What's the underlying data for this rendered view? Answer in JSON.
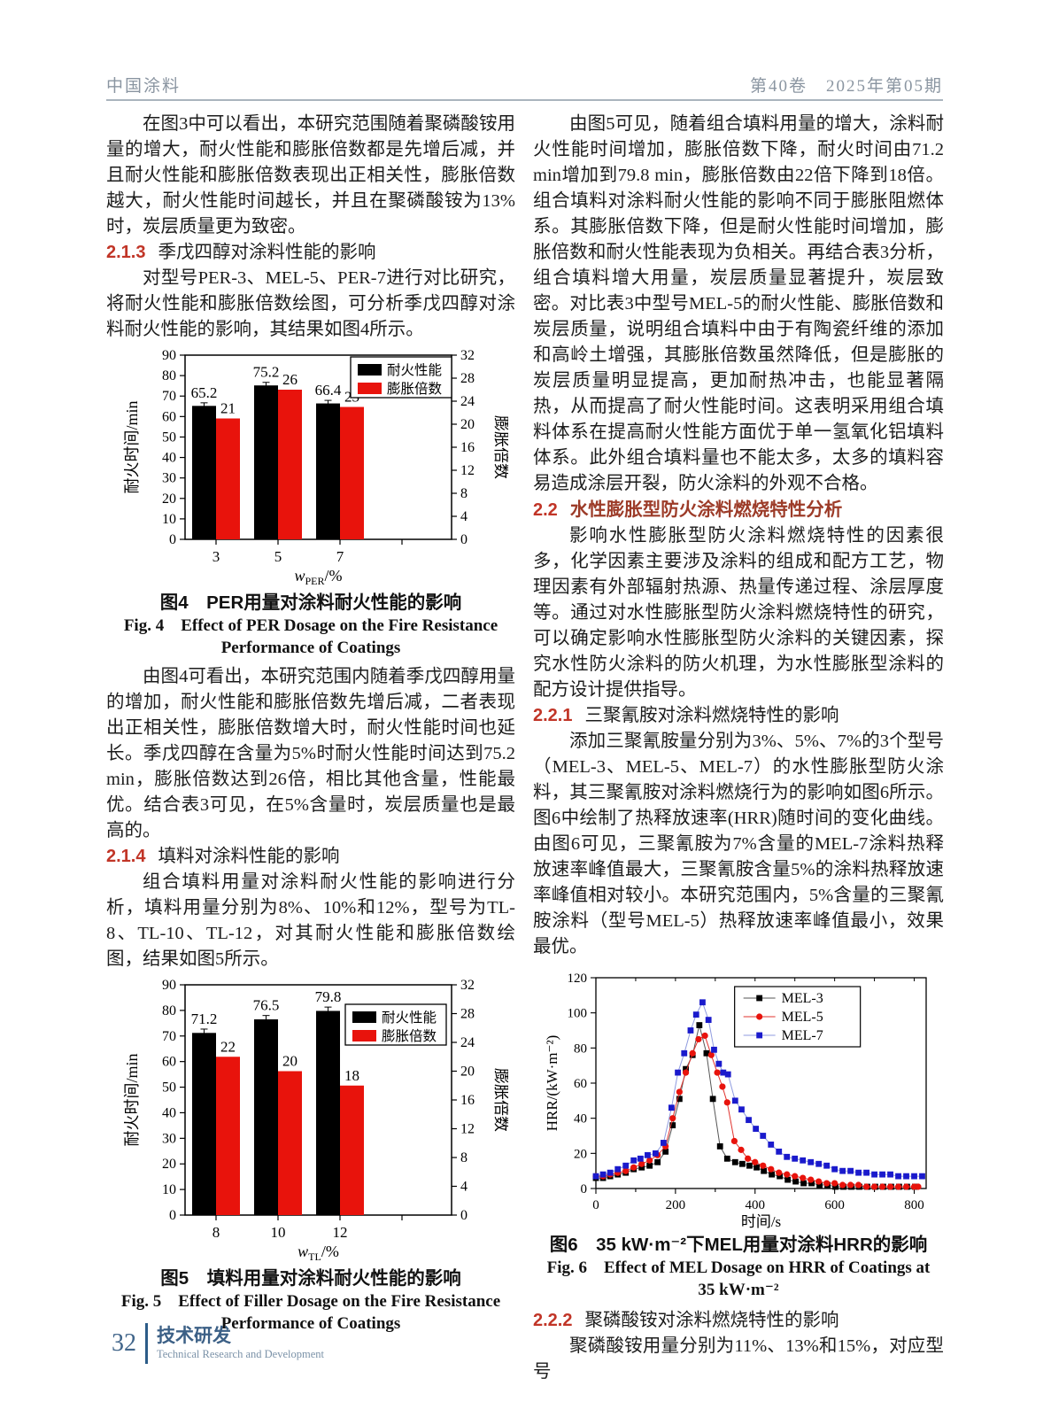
{
  "header": {
    "journal": "中国涂料",
    "issue": "第40卷　2025年第05期"
  },
  "footer": {
    "page": "32",
    "section_cn": "技术研发",
    "section_en": "Technical Research and Development"
  },
  "left": {
    "para1": "在图3中可以看出，本研究范围随着聚磷酸铵用量的增大，耐火性能和膨胀倍数都是先增后减，并且耐火性能和膨胀倍数表现出正相关性，膨胀倍数越大，耐火性能时间越长，并且在聚磷酸铵为13%时，炭层质量更为致密。",
    "s213": {
      "num": "2.1.3",
      "title": "季戊四醇对涂料性能的影响"
    },
    "para2": "对型号PER-3、MEL-5、PER-7进行对比研究，将耐火性能和膨胀倍数绘图，可分析季戊四醇对涂料耐火性能的影响，其结果如图4所示。",
    "fig4": {
      "cap_cn": "图4　PER用量对涂料耐火性能的影响",
      "cap_en1": "Fig. 4　Effect of PER Dosage on the Fire Resistance",
      "cap_en2": "Performance of Coatings"
    },
    "para3": "由图4可看出，本研究范围内随着季戊四醇用量的增加，耐火性能和膨胀倍数先增后减，二者表现出正相关性，膨胀倍数增大时，耐火性能时间也延长。季戊四醇在含量为5%时耐火性能时间达到75.2 min，膨胀倍数达到26倍，相比其他含量，性能最优。结合表3可见，在5%含量时，炭层质量也是最高的。",
    "s214": {
      "num": "2.1.4",
      "title": "填料对涂料性能的影响"
    },
    "para4": "组合填料用量对涂料耐火性能的影响进行分析，填料用量分别为8%、10%和12%，型号为TL-8、TL-10、TL-12，对其耐火性能和膨胀倍数绘图，结果如图5所示。",
    "fig5": {
      "cap_cn": "图5　填料用量对涂料耐火性能的影响",
      "cap_en1": "Fig. 5　Effect of Filler Dosage on the Fire Resistance",
      "cap_en2": "Performance of Coatings"
    }
  },
  "right": {
    "para1": "由图5可见，随着组合填料用量的增大，涂料耐火性能时间增加，膨胀倍数下降，耐火时间由71.2 min增加到79.8 min，膨胀倍数由22倍下降到18倍。组合填料对涂料耐火性能的影响不同于膨胀阻燃体系。其膨胀倍数下降，但是耐火性能时间增加，膨胀倍数和耐火性能表现为负相关。再结合表3分析，组合填料增大用量，炭层质量显著提升，炭层致密。对比表3中型号MEL-5的耐火性能、膨胀倍数和炭层质量，说明组合填料中由于有陶瓷纤维的添加和高岭土增强，其膨胀倍数虽然降低，但是膨胀的炭层质量明显提高，更加耐热冲击，也能显著隔热，从而提高了耐火性能时间。这表明采用组合填料体系在提高耐火性能方面优于单一氢氧化铝填料体系。此外组合填料量也不能太多，太多的填料容易造成涂层开裂，防火涂料的外观不合格。",
    "s22": {
      "num": "2.2",
      "title": "水性膨胀型防火涂料燃烧特性分析"
    },
    "para2": "影响水性膨胀型防火涂料燃烧特性的因素很多，化学因素主要涉及涂料的组成和配方工艺，物理因素有外部辐射热源、热量传递过程、涂层厚度等。通过对水性膨胀型防火涂料燃烧特性的研究，可以确定影响水性膨胀型防火涂料的关键因素，探究水性防火涂料的防火机理，为水性膨胀型涂料的配方设计提供指导。",
    "s221": {
      "num": "2.2.1",
      "title": "三聚氰胺对涂料燃烧特性的影响"
    },
    "para3": "添加三聚氰胺量分别为3%、5%、7%的3个型号（MEL-3、MEL-5、MEL-7）的水性膨胀型防火涂料，其三聚氰胺对涂料燃烧行为的影响如图6所示。图6中绘制了热释放速率(HRR)随时间的变化曲线。由图6可见，三聚氰胺为7%含量的MEL-7涂料热释放速率峰值最大，三聚氰胺含量5%的涂料热释放速率峰值相对较小。本研究范围内，5%含量的三聚氰胺涂料（型号MEL-5）热释放速率峰值最小，效果最优。",
    "fig6": {
      "cap_cn": "图6　35 kW·m⁻²下MEL用量对涂料HRR的影响",
      "cap_en1": "Fig. 6　Effect of MEL Dosage on HRR of Coatings at",
      "cap_en2": "35 kW·m⁻²"
    },
    "s222": {
      "num": "2.2.2",
      "title": "聚磷酸铵对涂料燃烧特性的影响"
    },
    "para4": "聚磷酸铵用量分别为11%、13%和15%，对应型号"
  },
  "colors": {
    "bar_black": "#000000",
    "bar_red": "#e8130c",
    "accent_red": "#c13527",
    "heading_red": "#9c3b28",
    "mel3": "#000000",
    "mel5": "#e8130c",
    "mel7": "#1a1acc"
  },
  "chart_data": [
    {
      "type": "bar",
      "title_cn": "图4 PER用量对涂料耐火性能的影响",
      "title_en": "Fig. 4 Effect of PER Dosage on the Fire Resistance Performance of Coatings",
      "categories": [
        "3",
        "5",
        "7"
      ],
      "series": [
        {
          "name": "耐火性能",
          "axis": "left",
          "color": "#000000",
          "values": [
            65.2,
            75.2,
            66.4
          ],
          "error": 1.5
        },
        {
          "name": "膨胀倍数",
          "axis": "right",
          "color": "#e8130c",
          "values": [
            21,
            26,
            23
          ]
        }
      ],
      "ylabel_left": "耐火时间/min",
      "ylabel_right": "膨胀倍数",
      "ylim_left": [
        0,
        90
      ],
      "ystep_left": 10,
      "ylim_right": [
        0,
        32
      ],
      "ystep_right": 4,
      "xlabel": {
        "var": "w",
        "sub": "PER",
        "unit": "/%"
      },
      "legend_pos": "top-right",
      "legend_dy": 2,
      "grid": false
    },
    {
      "type": "bar",
      "title_cn": "图5 填料用量对涂料耐火性能的影响",
      "title_en": "Fig. 5 Effect of Filler Dosage on the Fire Resistance Performance of Coatings",
      "categories": [
        "8",
        "10",
        "12"
      ],
      "series": [
        {
          "name": "耐火性能",
          "axis": "left",
          "color": "#000000",
          "values": [
            71.2,
            76.5,
            79.8
          ],
          "error": 1.5
        },
        {
          "name": "膨胀倍数",
          "axis": "right",
          "color": "#e8130c",
          "values": [
            22,
            20,
            18
          ]
        }
      ],
      "ylabel_left": "耐火时间/min",
      "ylabel_right": "膨胀倍数",
      "ylim_left": [
        0,
        90
      ],
      "ystep_left": 10,
      "ylim_right": [
        0,
        32
      ],
      "ystep_right": 4,
      "xlabel": {
        "var": "w",
        "sub": "TL",
        "unit": "/%"
      },
      "legend_pos": "top-right",
      "legend_dy": 22,
      "grid": false
    },
    {
      "type": "line",
      "title_cn": "图6 35 kW·m⁻²下MEL用量对涂料HRR的影响",
      "title_en": "Fig. 6 Effect of MEL Dosage on HRR of Coatings at 35 kW·m⁻²",
      "xlabel": "时间/s",
      "ylabel": "HRR/(kW·m⁻²)",
      "xlim": [
        0,
        830
      ],
      "xticks": [
        0,
        200,
        400,
        600,
        800
      ],
      "xminor": 100,
      "ylim": [
        0,
        120
      ],
      "ystep": 20,
      "grid": false,
      "legend_pos": "top-center-right",
      "series": [
        {
          "name": "MEL-3",
          "marker": "square",
          "color": "#000000",
          "line": "#555555",
          "points": [
            [
              0,
              6
            ],
            [
              18,
              6
            ],
            [
              36,
              7
            ],
            [
              55,
              8
            ],
            [
              75,
              9
            ],
            [
              95,
              11
            ],
            [
              115,
              12
            ],
            [
              135,
              13
            ],
            [
              155,
              15
            ],
            [
              175,
              21
            ],
            [
              193,
              36
            ],
            [
              210,
              51
            ],
            [
              226,
              68
            ],
            [
              243,
              76
            ],
            [
              260,
              93
            ],
            [
              278,
              77
            ],
            [
              294,
              51
            ],
            [
              312,
              24
            ],
            [
              330,
              17
            ],
            [
              350,
              15
            ],
            [
              368,
              14
            ],
            [
              386,
              13
            ],
            [
              404,
              12
            ],
            [
              422,
              10
            ],
            [
              442,
              8
            ],
            [
              462,
              7
            ],
            [
              482,
              5
            ],
            [
              502,
              4
            ],
            [
              522,
              3
            ],
            [
              542,
              3
            ],
            [
              562,
              2
            ],
            [
              582,
              2
            ],
            [
              602,
              1
            ],
            [
              622,
              1
            ],
            [
              642,
              1
            ],
            [
              662,
              1
            ],
            [
              682,
              1
            ],
            [
              702,
              1
            ],
            [
              722,
              1
            ],
            [
              742,
              1
            ],
            [
              762,
              1
            ],
            [
              782,
              1
            ],
            [
              802,
              1
            ]
          ]
        },
        {
          "name": "MEL-5",
          "marker": "circle",
          "color": "#e8130c",
          "line": "#e0332e",
          "points": [
            [
              0,
              7
            ],
            [
              18,
              7
            ],
            [
              36,
              8
            ],
            [
              55,
              9
            ],
            [
              75,
              10
            ],
            [
              95,
              12
            ],
            [
              115,
              14
            ],
            [
              135,
              16
            ],
            [
              155,
              19
            ],
            [
              175,
              24
            ],
            [
              193,
              40
            ],
            [
              210,
              55
            ],
            [
              226,
              66
            ],
            [
              243,
              77
            ],
            [
              258,
              85
            ],
            [
              274,
              87
            ],
            [
              290,
              76
            ],
            [
              305,
              66
            ],
            [
              318,
              58
            ],
            [
              330,
              49
            ],
            [
              348,
              27
            ],
            [
              365,
              22
            ],
            [
              382,
              17
            ],
            [
              400,
              15
            ],
            [
              420,
              13
            ],
            [
              440,
              11
            ],
            [
              460,
              9
            ],
            [
              480,
              8
            ],
            [
              500,
              7
            ],
            [
              520,
              6
            ],
            [
              540,
              5
            ],
            [
              560,
              4
            ],
            [
              580,
              3
            ],
            [
              600,
              3
            ],
            [
              620,
              2
            ],
            [
              640,
              2
            ],
            [
              660,
              2
            ],
            [
              680,
              1
            ],
            [
              700,
              1
            ],
            [
              720,
              1
            ],
            [
              740,
              1
            ],
            [
              760,
              1
            ],
            [
              780,
              1
            ],
            [
              800,
              1
            ],
            [
              810,
              1
            ]
          ]
        },
        {
          "name": "MEL-7",
          "marker": "square",
          "color": "#1a1acc",
          "line": "#8f9bdf",
          "points": [
            [
              0,
              7
            ],
            [
              18,
              8
            ],
            [
              36,
              9
            ],
            [
              55,
              11
            ],
            [
              75,
              13
            ],
            [
              95,
              16
            ],
            [
              112,
              17
            ],
            [
              130,
              19
            ],
            [
              150,
              20
            ],
            [
              170,
              26
            ],
            [
              190,
              46
            ],
            [
              206,
              66
            ],
            [
              222,
              77
            ],
            [
              238,
              90
            ],
            [
              252,
              99
            ],
            [
              268,
              106
            ],
            [
              283,
              96
            ],
            [
              297,
              79
            ],
            [
              309,
              71
            ],
            [
              320,
              66
            ],
            [
              332,
              65
            ],
            [
              350,
              50
            ],
            [
              366,
              45
            ],
            [
              384,
              39
            ],
            [
              402,
              34
            ],
            [
              420,
              30
            ],
            [
              440,
              25
            ],
            [
              460,
              21
            ],
            [
              480,
              18
            ],
            [
              500,
              17
            ],
            [
              520,
              16
            ],
            [
              540,
              15
            ],
            [
              560,
              14
            ],
            [
              580,
              13
            ],
            [
              600,
              11
            ],
            [
              620,
              10
            ],
            [
              640,
              10
            ],
            [
              660,
              9
            ],
            [
              680,
              9
            ],
            [
              700,
              8
            ],
            [
              720,
              8
            ],
            [
              740,
              8
            ],
            [
              760,
              7
            ],
            [
              780,
              7
            ],
            [
              800,
              7
            ],
            [
              820,
              7
            ]
          ]
        }
      ]
    }
  ]
}
